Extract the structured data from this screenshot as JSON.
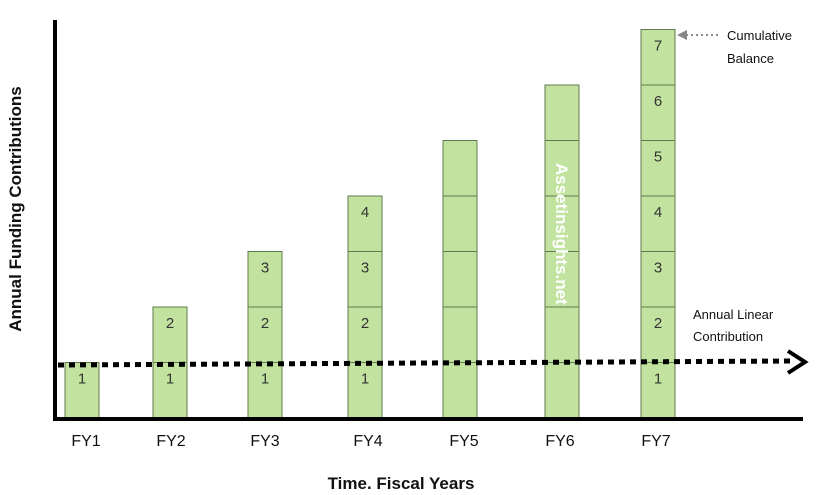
{
  "diagram": {
    "y_axis_title": "Annual Funding Contributions",
    "x_axis_title": "Time. Fiscal Years",
    "fiscal_years": [
      "FY1",
      "FY2",
      "FY3",
      "FY4",
      "FY5",
      "FY6",
      "FY7"
    ],
    "stack_heights": [
      1,
      2,
      3,
      4,
      5,
      6,
      7
    ],
    "segment_labels": [
      [
        "1"
      ],
      [
        "1",
        "2"
      ],
      [
        "1",
        "2",
        "3"
      ],
      [
        "1",
        "2",
        "3",
        "4"
      ],
      [
        "",
        "",
        "",
        "",
        ""
      ],
      [
        "",
        "",
        "",
        "",
        "",
        ""
      ],
      [
        "1",
        "2",
        "3",
        "4",
        "5",
        "6",
        "7"
      ]
    ],
    "cumulative_balance_label": [
      "Cumulative",
      "Balance"
    ],
    "annual_linear_label": [
      "Annual Linear",
      "Contribution"
    ],
    "watermark": "Assetinsights.net",
    "colors": {
      "block_fill": "#c2e3a0",
      "block_stroke": "#5f7a4c",
      "axis": "#000000"
    }
  }
}
